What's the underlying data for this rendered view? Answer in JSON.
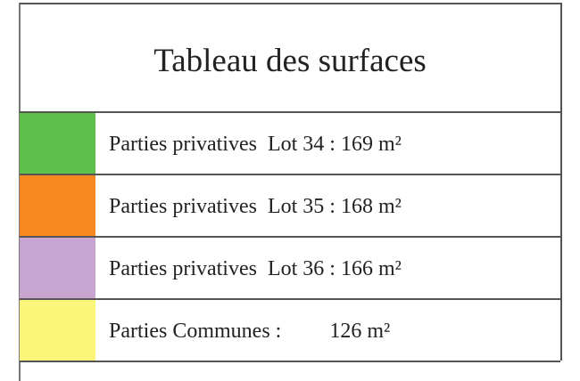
{
  "title": "Tableau des surfaces",
  "rows": [
    {
      "label": "Parties privatives  Lot 34 : 169 m²",
      "color": "#5cc04a"
    },
    {
      "label": "Parties privatives  Lot 35 : 168 m²",
      "color": "#f7881f"
    },
    {
      "label": "Parties privatives  Lot 36 : 166 m²",
      "color": "#c9a6d2"
    },
    {
      "label": "Parties Communes :         126 m²",
      "color": "#fbf57a"
    }
  ]
}
